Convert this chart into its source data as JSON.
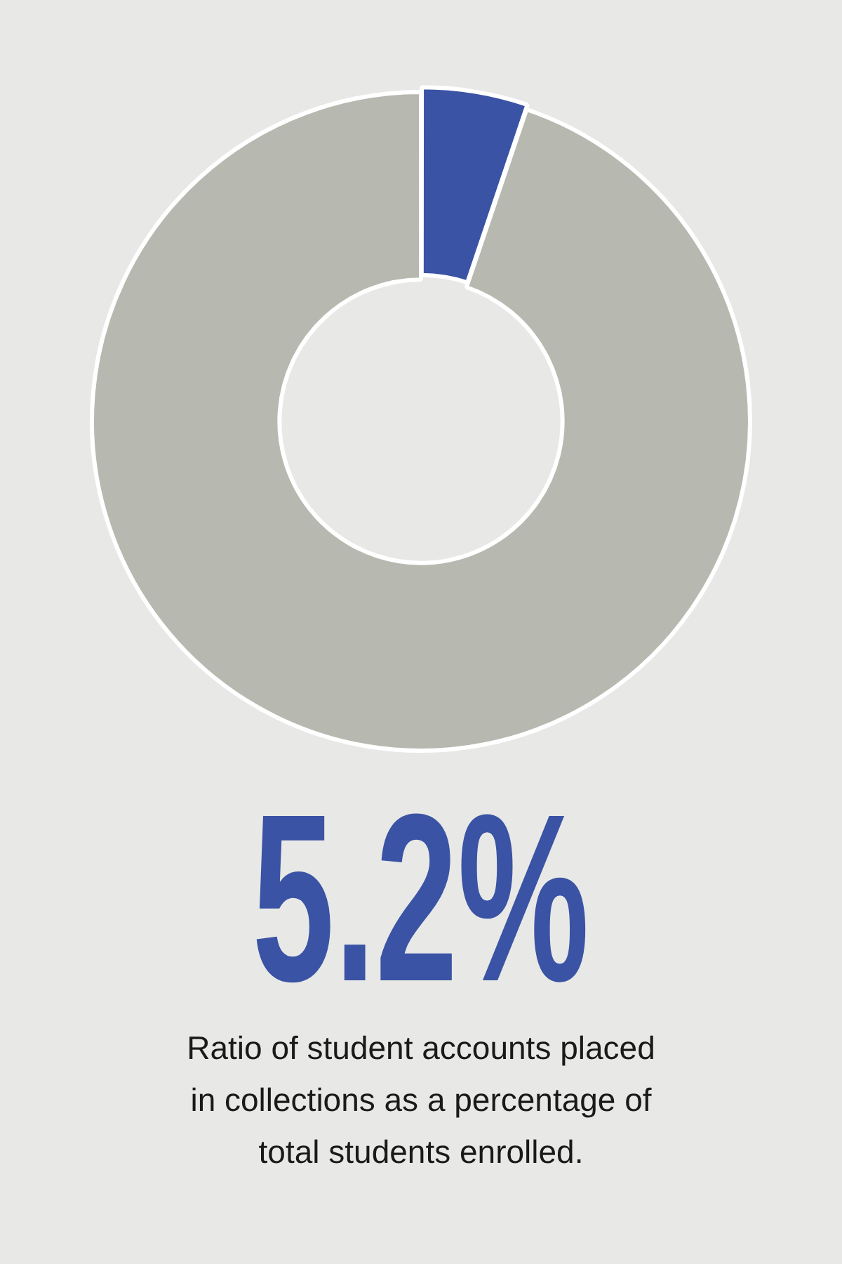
{
  "chart_data": {
    "type": "donut",
    "categories": [
      null,
      null
    ],
    "values": [
      5.2,
      94.8
    ],
    "colors": [
      "#3a53a4",
      "#b7b9b0"
    ],
    "annotations": [
      "5.2%",
      "Ratio of student accounts placed in collections as a percentage of total students enrolled."
    ]
  }
}
